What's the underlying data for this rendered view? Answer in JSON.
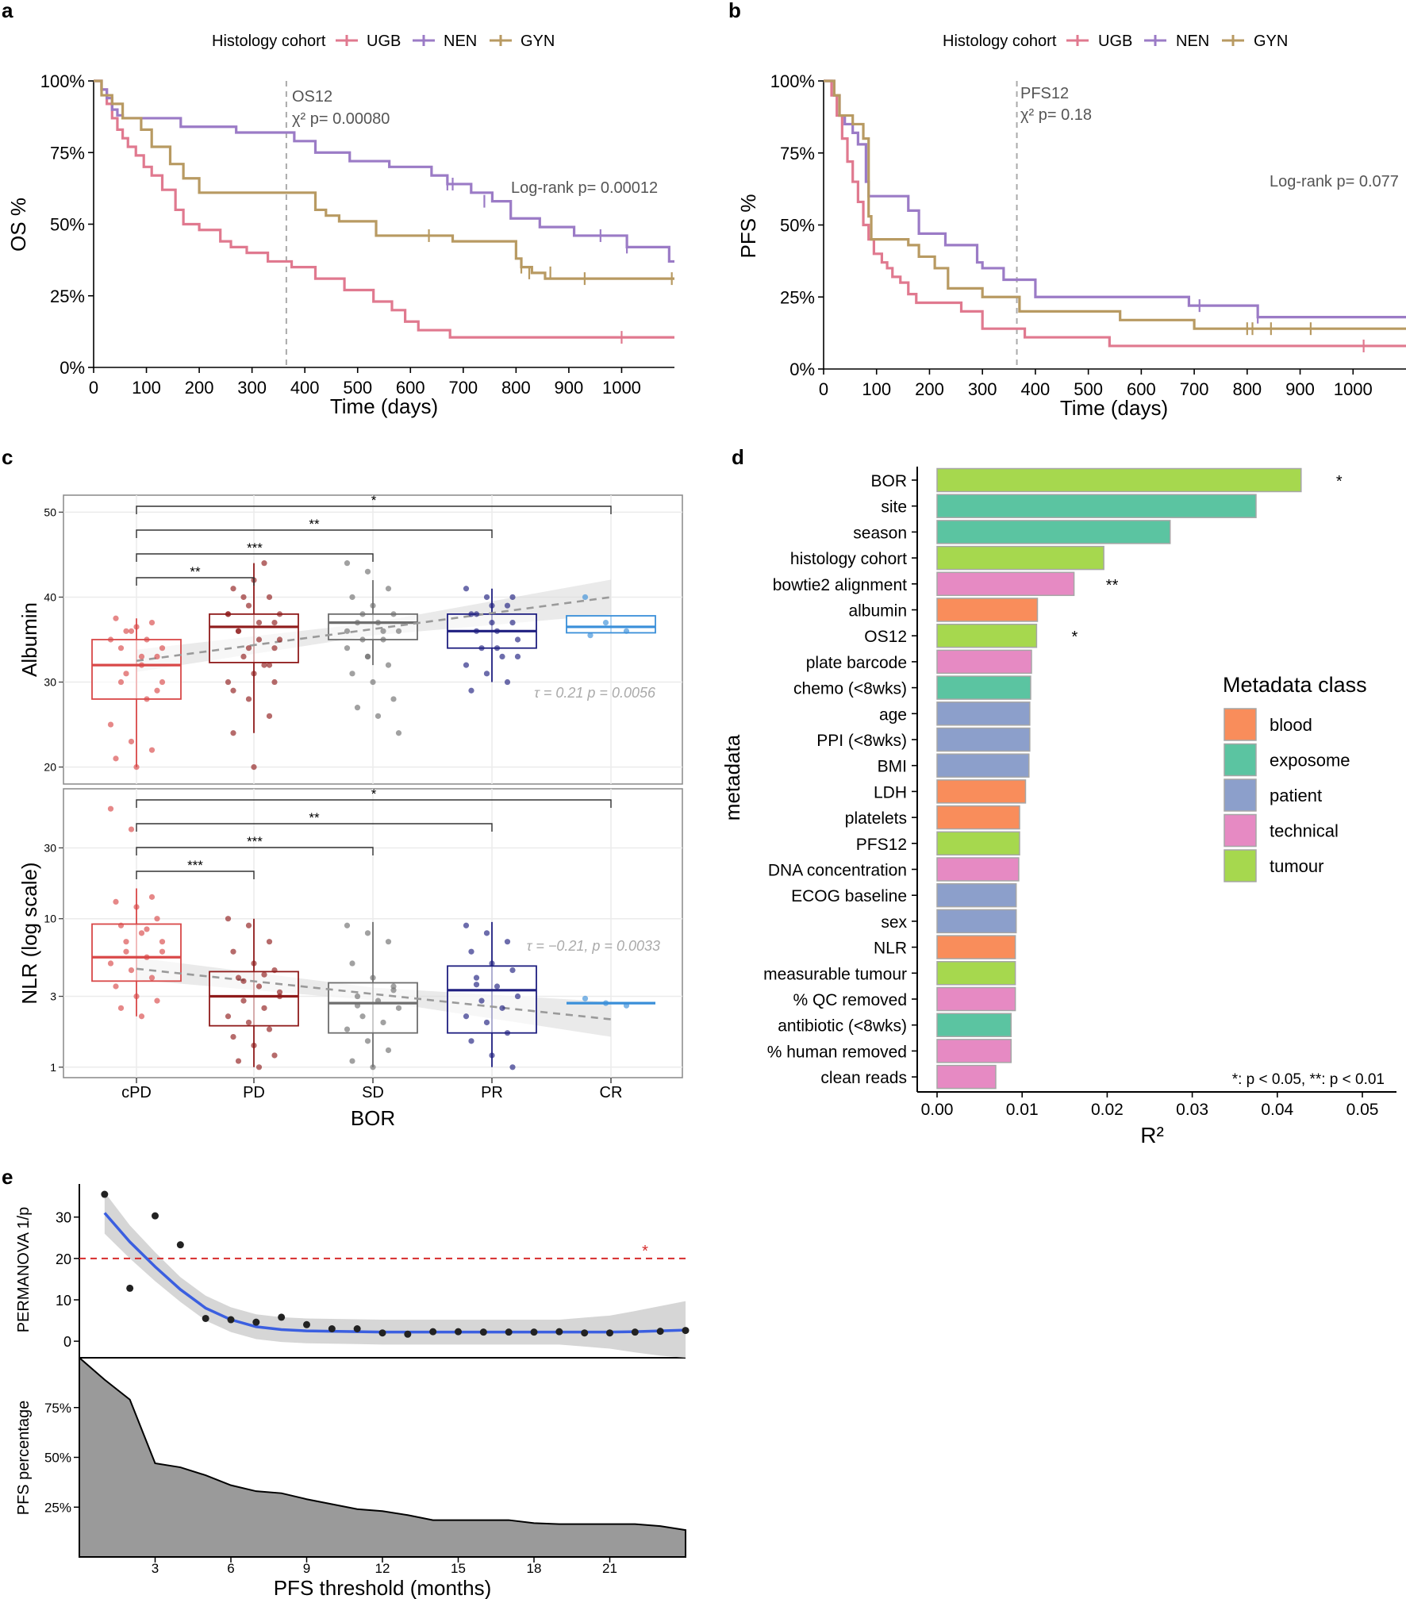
{
  "figure": {
    "panel_labels": [
      "a",
      "b",
      "c",
      "d",
      "e"
    ]
  },
  "chart_data": [
    {
      "panel": "a",
      "type": "line",
      "subtype": "kaplan-meier",
      "legend_title": "Histology cohort",
      "xlabel": "Time (days)",
      "ylabel": "OS %",
      "xlim": [
        0,
        1100
      ],
      "ylim": [
        0,
        100
      ],
      "xticks": [
        0,
        100,
        200,
        300,
        400,
        500,
        600,
        700,
        800,
        900,
        1000
      ],
      "yticks": [
        "0%",
        "25%",
        "50%",
        "75%",
        "100%"
      ],
      "cutoff_day": 365,
      "cutoff_label": "OS12",
      "chi_label": "χ² p= 0.00080",
      "logrank_label": "Log-rank p= 0.00012",
      "series": [
        {
          "name": "UGB",
          "color": "#e0798f",
          "x": [
            0,
            15,
            25,
            35,
            45,
            55,
            65,
            80,
            95,
            110,
            130,
            155,
            170,
            200,
            240,
            260,
            290,
            330,
            375,
            420,
            475,
            530,
            565,
            590,
            615,
            675,
            1100
          ],
          "y": [
            100,
            97,
            92,
            87,
            83,
            80,
            77,
            74,
            70,
            67,
            62,
            55,
            50,
            48,
            44,
            42,
            40,
            37,
            35,
            31,
            27,
            23,
            20,
            16,
            13,
            10.5,
            10.5
          ],
          "censor_x": [
            1000
          ],
          "censor_y": [
            10.5
          ]
        },
        {
          "name": "NEN",
          "color": "#9b7bc6",
          "x": [
            0,
            15,
            25,
            35,
            45,
            55,
            165,
            270,
            380,
            420,
            485,
            560,
            640,
            670,
            715,
            755,
            790,
            845,
            910,
            1010,
            1090,
            1100
          ],
          "y": [
            100,
            97,
            94,
            90,
            88,
            87,
            84,
            82,
            79,
            75,
            72,
            70,
            67,
            64,
            61,
            58,
            52,
            49,
            46,
            42,
            37,
            37
          ],
          "censor_x": [
            670,
            680,
            740,
            960,
            1010
          ],
          "censor_y": [
            64,
            64,
            58,
            46,
            42
          ]
        },
        {
          "name": "GYN",
          "color": "#b89a62",
          "x": [
            0,
            15,
            35,
            55,
            90,
            110,
            145,
            170,
            200,
            420,
            440,
            465,
            535,
            680,
            800,
            810,
            830,
            855,
            1100
          ],
          "y": [
            100,
            95,
            92,
            87,
            83,
            77,
            71,
            66,
            61,
            55,
            53,
            51,
            46,
            44,
            38,
            35,
            33,
            31,
            31
          ],
          "censor_x": [
            635,
            810,
            825,
            865,
            930,
            1095
          ],
          "censor_y": [
            46,
            35,
            33,
            33,
            31,
            31
          ]
        }
      ]
    },
    {
      "panel": "b",
      "type": "line",
      "subtype": "kaplan-meier",
      "legend_title": "Histology cohort",
      "xlabel": "Time (days)",
      "ylabel": "PFS %",
      "xlim": [
        0,
        1100
      ],
      "ylim": [
        0,
        100
      ],
      "xticks": [
        0,
        100,
        200,
        300,
        400,
        500,
        600,
        700,
        800,
        900,
        1000
      ],
      "yticks": [
        "0%",
        "25%",
        "50%",
        "75%",
        "100%"
      ],
      "cutoff_day": 365,
      "cutoff_label": "PFS12",
      "chi_label": "χ² p= 0.18",
      "logrank_label": "Log-rank p= 0.077",
      "series": [
        {
          "name": "UGB",
          "color": "#e0798f",
          "x": [
            0,
            15,
            25,
            35,
            45,
            55,
            65,
            75,
            85,
            95,
            110,
            120,
            130,
            145,
            160,
            175,
            260,
            300,
            380,
            540,
            1100
          ],
          "y": [
            100,
            95,
            88,
            80,
            72,
            65,
            58,
            50,
            45,
            40,
            37,
            35,
            32,
            30,
            26,
            23,
            20,
            14,
            11,
            8,
            8
          ],
          "censor_x": [
            1020
          ],
          "censor_y": [
            8
          ]
        },
        {
          "name": "NEN",
          "color": "#9b7bc6",
          "x": [
            0,
            20,
            30,
            40,
            55,
            65,
            80,
            85,
            160,
            180,
            230,
            290,
            300,
            340,
            400,
            690,
            820,
            1100
          ],
          "y": [
            100,
            95,
            88,
            85,
            82,
            78,
            65,
            60,
            55,
            47,
            43,
            37,
            35,
            31,
            25,
            22,
            18,
            18
          ],
          "censor_x": [
            710,
            820
          ],
          "censor_y": [
            22,
            18
          ]
        },
        {
          "name": "GYN",
          "color": "#b89a62",
          "x": [
            0,
            20,
            30,
            55,
            75,
            85,
            90,
            160,
            180,
            210,
            235,
            300,
            370,
            560,
            700,
            1100
          ],
          "y": [
            100,
            95,
            88,
            85,
            80,
            53,
            45,
            43,
            39,
            35,
            28,
            25,
            20,
            17,
            14,
            14
          ],
          "censor_x": [
            800,
            810,
            845,
            920
          ],
          "censor_y": [
            14,
            14,
            14,
            14
          ]
        }
      ]
    },
    {
      "panel": "c",
      "type": "box",
      "categories": [
        "cPD",
        "PD",
        "SD",
        "PR",
        "CR"
      ],
      "colors": [
        "#d94848",
        "#8f1b1b",
        "#6e6e6e",
        "#1f1f80",
        "#3a8fd9"
      ],
      "xlabel": "BOR",
      "top": {
        "ylabel": "Albumin",
        "ylim": [
          18,
          52
        ],
        "yticks": [
          20,
          30,
          40,
          50
        ],
        "boxes": [
          {
            "q1": 28,
            "median": 32,
            "q3": 35,
            "lo": 20,
            "hi": 37.5
          },
          {
            "q1": 32.3,
            "median": 36.5,
            "q3": 38,
            "lo": 24,
            "hi": 44
          },
          {
            "q1": 35,
            "median": 37,
            "q3": 38,
            "lo": 32,
            "hi": 42
          },
          {
            "q1": 34,
            "median": 36,
            "q3": 38,
            "lo": 30,
            "hi": 41
          },
          {
            "q1": 35.8,
            "median": 36.5,
            "q3": 37.8,
            "lo": 35.8,
            "hi": 37.8
          }
        ],
        "points": [
          [
            35,
            36,
            37,
            37.5,
            36.5,
            33,
            34,
            32,
            30,
            31,
            28,
            25,
            23,
            22,
            21,
            20,
            29,
            30,
            33,
            34,
            36,
            35
          ],
          [
            38,
            39,
            40,
            41,
            42,
            37,
            36,
            35,
            35,
            33,
            32,
            30,
            28,
            26,
            24,
            31,
            34,
            36,
            37,
            38,
            40,
            44,
            38,
            34,
            32,
            29,
            20,
            30
          ],
          [
            44,
            43,
            41,
            40,
            39,
            38,
            37,
            37,
            36,
            35,
            35,
            34,
            33,
            32,
            31,
            30,
            28,
            27,
            26,
            24,
            38,
            36,
            36,
            33
          ],
          [
            41,
            40,
            39,
            38,
            37,
            37,
            36,
            36,
            35,
            34,
            33,
            32,
            31,
            30,
            29,
            39,
            40,
            38,
            34,
            33
          ],
          [
            40,
            37,
            36,
            35.5
          ]
        ],
        "trend": [
          32.5,
          40
        ],
        "annotation": "τ = 0.21   p = 0.0056",
        "brackets": [
          {
            "to": 1,
            "label": "**"
          },
          {
            "to": 2,
            "label": "***"
          },
          {
            "to": 3,
            "label": "**"
          },
          {
            "to": 4,
            "label": "*"
          }
        ]
      },
      "bottom": {
        "ylabel": "NLR (log scale)",
        "scale": "log",
        "ylim": [
          0.85,
          75
        ],
        "yticks": [
          1,
          3,
          10,
          30
        ],
        "boxes": [
          {
            "q1": 3.8,
            "median": 5.5,
            "q3": 9.2,
            "lo": 2.2,
            "hi": 16
          },
          {
            "q1": 1.9,
            "median": 3,
            "q3": 4.4,
            "lo": 1,
            "hi": 10
          },
          {
            "q1": 1.7,
            "median": 2.7,
            "q3": 3.7,
            "lo": 1,
            "hi": 9.5
          },
          {
            "q1": 1.7,
            "median": 3.3,
            "q3": 4.8,
            "lo": 1,
            "hi": 9.5
          },
          {
            "q1": 2.7,
            "median": 2.7,
            "q3": 2.7,
            "lo": 2.7,
            "hi": 2.7
          }
        ],
        "points": [
          [
            55,
            40,
            14,
            13,
            12,
            10,
            9,
            8,
            7,
            6,
            5.5,
            5,
            4.5,
            4,
            3.5,
            3,
            2.8,
            2.5,
            2.2,
            6,
            7,
            8.5
          ],
          [
            10,
            9,
            7,
            6,
            5,
            4.5,
            4,
            3.5,
            3,
            2.8,
            2.5,
            2.2,
            2,
            1.8,
            1.6,
            1.4,
            1.2,
            1.1,
            1,
            3.2,
            3.8,
            4.2
          ],
          [
            9,
            8,
            7,
            5,
            4,
            3.5,
            3,
            2.8,
            2.5,
            2.2,
            2,
            1.8,
            1.5,
            1.3,
            1.1,
            1,
            3.3,
            2.6
          ],
          [
            9,
            8,
            7,
            6,
            5,
            4.5,
            4,
            3.5,
            3,
            2.8,
            2.5,
            2.2,
            2,
            1.7,
            1.5,
            1.2,
            1,
            3.6
          ],
          [
            2.9,
            2.7,
            2.6
          ]
        ],
        "trend": [
          4.6,
          2.1
        ],
        "annotation": "τ = −0.21,  p = 0.0033",
        "brackets": [
          {
            "to": 1,
            "label": "***"
          },
          {
            "to": 2,
            "label": "***"
          },
          {
            "to": 3,
            "label": "**"
          },
          {
            "to": 4,
            "label": "*"
          }
        ]
      }
    },
    {
      "panel": "d",
      "type": "bar",
      "orientation": "horizontal",
      "xlabel": "R²",
      "ylabel": "metadata",
      "xlim": [
        0,
        0.052
      ],
      "xticks": [
        "0.00",
        "0.01",
        "0.02",
        "0.03",
        "0.04",
        "0.05"
      ],
      "legend_title": "Metadata class",
      "classes": [
        {
          "name": "blood",
          "color": "#f98d5b"
        },
        {
          "name": "exposome",
          "color": "#5bc4a1"
        },
        {
          "name": "patient",
          "color": "#8c9fcb"
        },
        {
          "name": "technical",
          "color": "#e68ac3"
        },
        {
          "name": "tumour",
          "color": "#a6d84e"
        }
      ],
      "categories": [
        "BOR",
        "site",
        "season",
        "histology cohort",
        "bowtie2 alignment",
        "albumin",
        "OS12",
        "plate barcode",
        "chemo (<8wks)",
        "age",
        "PPI (<8wks)",
        "BMI",
        "LDH",
        "platelets",
        "PFS12",
        "DNA concentration",
        "ECOG baseline",
        "sex",
        "NLR",
        "measurable tumour",
        "% QC removed",
        "antibiotic (<8wks)",
        "% human removed",
        "clean reads"
      ],
      "values": [
        0.0428,
        0.0375,
        0.0274,
        0.0196,
        0.0161,
        0.0118,
        0.0117,
        0.0111,
        0.011,
        0.0109,
        0.0109,
        0.0108,
        0.0104,
        0.0097,
        0.0097,
        0.0096,
        0.0093,
        0.0093,
        0.0092,
        0.0092,
        0.0092,
        0.0087,
        0.0087,
        0.0069
      ],
      "class_of": [
        "tumour",
        "exposome",
        "exposome",
        "tumour",
        "technical",
        "blood",
        "tumour",
        "technical",
        "exposome",
        "patient",
        "patient",
        "patient",
        "blood",
        "blood",
        "tumour",
        "technical",
        "patient",
        "patient",
        "blood",
        "tumour",
        "technical",
        "exposome",
        "technical",
        "technical"
      ],
      "stars": [
        "*",
        "",
        "",
        "",
        "**",
        "",
        "*",
        "",
        "",
        "",
        "",
        "",
        "",
        "",
        "",
        "",
        "",
        "",
        "",
        "",
        "",
        "",
        "",
        ""
      ],
      "footnote": "*: p < 0.05, **: p < 0.01"
    },
    {
      "panel": "e",
      "type": "scatter",
      "xlabel": "PFS threshold (months)",
      "top": {
        "ylabel": "PERMANOVA 1/p",
        "ylim": [
          -4,
          38
        ],
        "yticks": [
          0,
          10,
          20,
          30
        ],
        "threshold": 20,
        "threshold_star": "*",
        "x": [
          1,
          2,
          3,
          4,
          5,
          6,
          7,
          8,
          9,
          10,
          11,
          12,
          13,
          14,
          15,
          16,
          17,
          18,
          19,
          20,
          21,
          22,
          23,
          24
        ],
        "y": [
          35.5,
          12.8,
          30.3,
          23.3,
          5.5,
          5.2,
          4.6,
          5.8,
          4,
          3,
          3,
          2,
          1.7,
          2.3,
          2.3,
          2.2,
          2.2,
          2.2,
          2.3,
          2,
          2,
          2.2,
          2.4,
          2.6
        ],
        "smooth": [
          31,
          24,
          18,
          12.5,
          8,
          5.2,
          3.5,
          2.8,
          2.5,
          2.4,
          2.3,
          2.2,
          2.2,
          2.2,
          2.2,
          2.2,
          2.2,
          2.2,
          2.2,
          2.2,
          2.2,
          2.3,
          2.5,
          2.7
        ],
        "band": [
          5,
          4,
          3.5,
          3,
          3,
          3,
          3,
          3,
          3,
          3,
          3,
          3,
          3,
          3,
          3,
          3,
          3,
          3,
          3,
          3.5,
          4,
          5,
          6,
          7
        ]
      },
      "bottom": {
        "ylabel": "PFS percentage",
        "type": "area",
        "yticks": [
          "25%",
          "50%",
          "75%"
        ],
        "x": [
          0,
          1,
          2,
          3,
          4,
          5,
          6,
          7,
          8,
          9,
          10,
          11,
          12,
          13,
          14,
          15,
          16,
          17,
          18,
          19,
          20,
          21,
          22,
          23,
          24
        ],
        "y": [
          100,
          89,
          79,
          47,
          45,
          41,
          36,
          33,
          32,
          29,
          26.5,
          24,
          23,
          21,
          18.5,
          18.5,
          18.5,
          18.5,
          17,
          16.5,
          16.5,
          16.5,
          16.5,
          15.5,
          13.5
        ]
      },
      "xticks": [
        3,
        6,
        9,
        12,
        15,
        18,
        21
      ],
      "xlim": [
        0,
        24
      ]
    }
  ]
}
